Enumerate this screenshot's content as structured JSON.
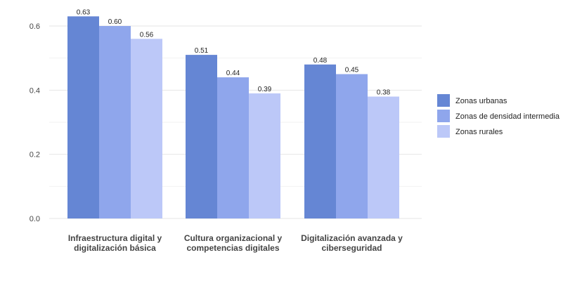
{
  "chart_data": {
    "type": "bar",
    "title": "",
    "xlabel": "",
    "ylabel": "",
    "categories": [
      [
        "Infraestructura digital y",
        "digitalización básica"
      ],
      [
        "Cultura organizacional y",
        "competencias digitales"
      ],
      [
        "Digitalización avanzada y",
        "ciberseguridad"
      ]
    ],
    "series": [
      {
        "name": "Zonas urbanas",
        "color": "#6586D4",
        "values": [
          0.63,
          0.51,
          0.48
        ]
      },
      {
        "name": "Zonas de densidad intermedia",
        "color": "#8FA6EC",
        "values": [
          0.6,
          0.44,
          0.45
        ]
      },
      {
        "name": "Zonas rurales",
        "color": "#BCC8F8",
        "values": [
          0.56,
          0.39,
          0.38
        ]
      }
    ],
    "ylim": [
      0,
      0.65
    ],
    "yticks": [
      0.0,
      0.2,
      0.4,
      0.6
    ],
    "grid": true,
    "legend": "right"
  }
}
